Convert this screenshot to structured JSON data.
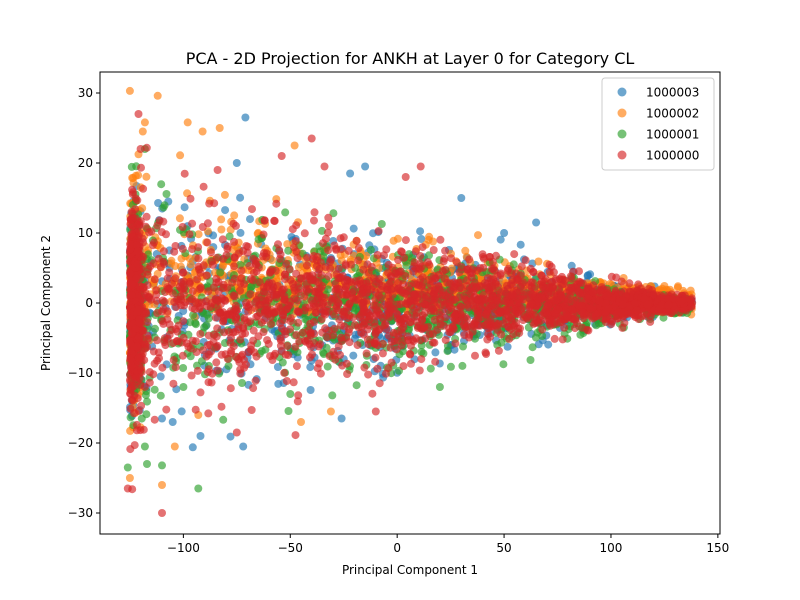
{
  "chart_data": {
    "type": "scatter",
    "title": "PCA - 2D Projection for ANKH at Layer 0 for Category CL",
    "xlabel": "Principal Component 1",
    "ylabel": "Principal Component 2",
    "xlim": [
      -139,
      151
    ],
    "ylim": [
      -33,
      33
    ],
    "xticks": [
      -100,
      -50,
      0,
      50,
      100,
      150
    ],
    "xtick_labels": [
      "−100",
      "−50",
      "0",
      "50",
      "100",
      "150"
    ],
    "yticks": [
      -30,
      -20,
      -10,
      0,
      10,
      20,
      30
    ],
    "ytick_labels": [
      "−30",
      "−20",
      "−10",
      "0",
      "10",
      "20",
      "30"
    ],
    "grid": false,
    "legend_position": "top-right",
    "series": [
      {
        "name": "1000003",
        "color": "#1f77b4",
        "seed": 11,
        "count": 1100,
        "outliers": [
          [
            -71,
            26.5
          ],
          [
            -92,
            -19
          ],
          [
            -72,
            -20.5
          ],
          [
            -75,
            20
          ],
          [
            -22,
            18.5
          ],
          [
            -15,
            19.5
          ],
          [
            65,
            11.5
          ],
          [
            -110,
            -16.5
          ],
          [
            -105,
            -17
          ],
          [
            -26,
            -16.5
          ],
          [
            30,
            15
          ],
          [
            50,
            10
          ]
        ]
      },
      {
        "name": "1000002",
        "color": "#ff7f0e",
        "seed": 23,
        "count": 1400,
        "outliers": [
          [
            -125,
            30.3
          ],
          [
            -112,
            29.6
          ],
          [
            -118,
            25.8
          ],
          [
            -98,
            25.8
          ],
          [
            -91,
            24.5
          ],
          [
            -83,
            25
          ],
          [
            -48,
            22.5
          ],
          [
            -45,
            -17
          ],
          [
            -119,
            24.5
          ],
          [
            -110,
            -26
          ],
          [
            -125,
            -25
          ],
          [
            -93,
            -16
          ],
          [
            -104,
            -20.5
          ],
          [
            -31,
            -15.5
          ]
        ]
      },
      {
        "name": "1000001",
        "color": "#2ca02c",
        "seed": 37,
        "count": 1100,
        "outliers": [
          [
            -93,
            -26.5
          ],
          [
            -110,
            -23.2
          ],
          [
            -117,
            -23
          ],
          [
            -118,
            -20.5
          ],
          [
            -126,
            -23.5
          ],
          [
            -50,
            -13
          ],
          [
            -100,
            -12
          ],
          [
            -118,
            22
          ],
          [
            20,
            -12
          ]
        ]
      },
      {
        "name": "1000000",
        "color": "#d62728",
        "seed": 53,
        "count": 2400,
        "outliers": [
          [
            -110,
            -30
          ],
          [
            -121,
            27
          ],
          [
            -126,
            -26.5
          ],
          [
            -40,
            23.5
          ],
          [
            11,
            19.5
          ],
          [
            -34,
            19.5
          ],
          [
            -84,
            19
          ],
          [
            -10,
            -15.5
          ],
          [
            -75,
            -18.5
          ],
          [
            -54,
            21
          ],
          [
            4,
            18
          ],
          [
            -120,
            22
          ]
        ]
      }
    ]
  }
}
